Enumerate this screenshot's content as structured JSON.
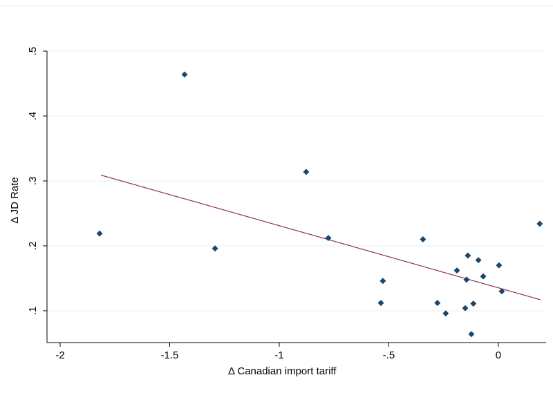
{
  "chart_data": {
    "type": "scatter",
    "x_label": "Δ Canadian import tariff",
    "y_label": "Δ JD Rate",
    "xlim": [
      -2.06,
      0.218
    ],
    "ylim": [
      0.051,
      0.5
    ],
    "xticks": [
      -2,
      {
        "value": -1.5,
        "label": "-1.5"
      },
      -1,
      {
        "value": -0.5,
        "label": "-.5"
      },
      0
    ],
    "yticks": [
      {
        "value": 0.1,
        "label": ".1"
      },
      {
        "value": 0.2,
        "label": ".2"
      },
      {
        "value": 0.3,
        "label": ".3"
      },
      {
        "value": 0.4,
        "label": ".4"
      },
      {
        "value": 0.5,
        "label": ".5"
      }
    ],
    "grid": true,
    "points": {
      "color": "#1a476f",
      "x": [
        -1.432,
        -1.82,
        -1.293,
        -0.877,
        -0.776,
        -0.527,
        -0.536,
        -0.344,
        -0.278,
        -0.24,
        -0.139,
        -0.189,
        -0.145,
        -0.091,
        -0.069,
        -0.114,
        -0.151,
        -0.123,
        0.003,
        0.016,
        0.189
      ],
      "y": [
        0.464,
        0.219,
        0.196,
        0.314,
        0.212,
        0.146,
        0.112,
        0.21,
        0.112,
        0.096,
        0.185,
        0.162,
        0.148,
        0.178,
        0.153,
        0.111,
        0.104,
        0.064,
        0.17,
        0.13,
        0.234
      ]
    },
    "fit": {
      "color": "#90353b",
      "x": [
        -1.814,
        0.192
      ],
      "y": [
        0.309,
        0.117
      ]
    }
  }
}
